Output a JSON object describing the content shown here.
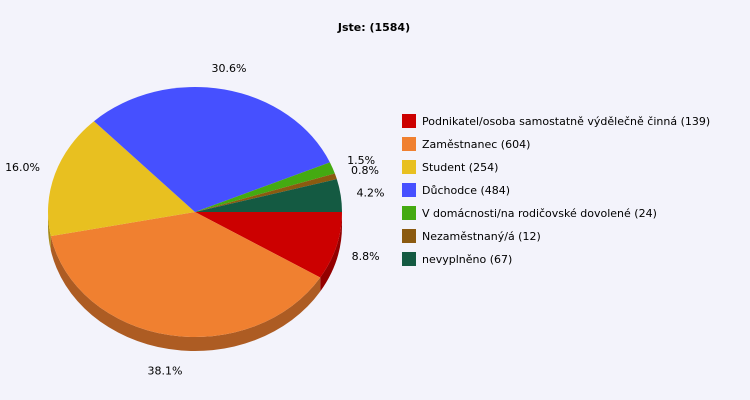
{
  "chart_data": {
    "type": "pie",
    "title": "Jste: (1584)",
    "slices": [
      {
        "label": "Podnikatel/osoba samostatně výdělečně činná (139)",
        "value": 139,
        "percent_label": "8.8%",
        "color": "#cc0000"
      },
      {
        "label": "Zaměstnanec (604)",
        "value": 604,
        "percent_label": "38.1%",
        "color": "#f08030"
      },
      {
        "label": "Student (254)",
        "value": 254,
        "percent_label": "16.0%",
        "color": "#e8c020"
      },
      {
        "label": "Důchodce (484)",
        "value": 484,
        "percent_label": "30.6%",
        "color": "#4650ff"
      },
      {
        "label": "V domácnosti/na rodičovské dovolené (24)",
        "value": 24,
        "percent_label": "1.5%",
        "color": "#44aa11"
      },
      {
        "label": "Nezaměstnaný/á (12)",
        "value": 12,
        "percent_label": "0.8%",
        "color": "#8b5a10"
      },
      {
        "label": "nevyplněno (67)",
        "value": 67,
        "percent_label": "4.2%",
        "color": "#145a42"
      }
    ],
    "legend_position": "right",
    "style": "3d"
  }
}
